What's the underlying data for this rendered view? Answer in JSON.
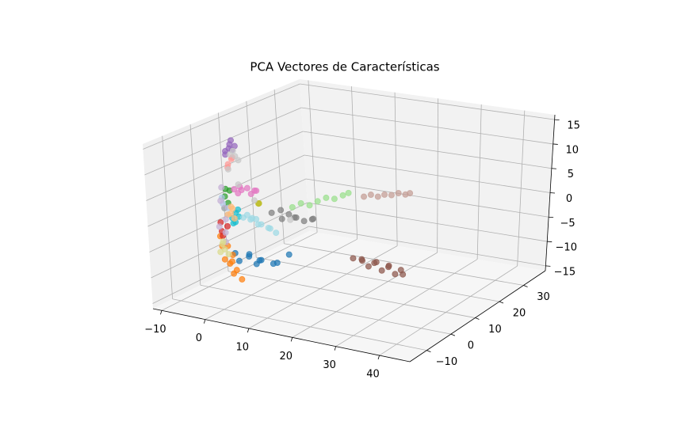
{
  "chart_data": {
    "type": "scatter3d",
    "title": "PCA Vectores de Características",
    "xlim": [
      -12,
      47
    ],
    "ylim": [
      -17,
      39
    ],
    "zlim": [
      -16,
      16
    ],
    "xticks": [
      {
        "value": -10,
        "label": "−10"
      },
      0,
      10,
      20,
      30,
      40
    ],
    "yticks": [
      {
        "value": -10,
        "label": "−10"
      },
      0,
      10,
      20,
      30
    ],
    "zticks": [
      {
        "value": -15,
        "label": "−15"
      },
      {
        "value": -10,
        "label": "−10"
      },
      {
        "value": -5,
        "label": "−5"
      },
      0,
      5,
      10,
      15
    ],
    "grid": true,
    "series": [
      {
        "color": "#1f77b4",
        "x": [
          3,
          4.5,
          5.5,
          6.5,
          7.5,
          8.5,
          9.5,
          11,
          12.5,
          14
        ],
        "y": [
          -10,
          -11,
          -9,
          -10.5,
          -9.5,
          -10,
          -11,
          -9,
          -10,
          -8
        ],
        "z": [
          -4.5,
          -5.5,
          -5,
          -4,
          -6,
          -5,
          -4.5,
          -5.5,
          -4.8,
          -3.5
        ]
      },
      {
        "color": "#ff7f0e",
        "x": [
          1,
          2,
          2.5,
          3,
          3.5,
          4,
          4.5,
          5,
          2,
          3.5
        ],
        "y": [
          -12,
          -11,
          -13,
          -12,
          -11.5,
          -12.5,
          -12,
          -11,
          -13,
          -12
        ],
        "z": [
          -1,
          -3,
          -5,
          -6,
          -8,
          -4,
          -7,
          -9,
          -2.5,
          -5.5
        ]
      },
      {
        "color": "#2ca02c",
        "x": [
          -2,
          -1.5,
          -1,
          -2.5,
          -1.8
        ],
        "y": [
          -5,
          -4,
          -5.5,
          -4.5,
          -5
        ],
        "z": [
          4.5,
          5.5,
          3.5,
          2,
          6
        ]
      },
      {
        "color": "#d62728",
        "x": [
          -3,
          -2.5,
          -2,
          -3.2
        ],
        "y": [
          -5,
          -5.5,
          -4.5,
          -5
        ],
        "z": [
          -2.5,
          -3.2,
          -1.5,
          -0.8
        ]
      },
      {
        "color": "#9467bd",
        "x": [
          -1.5,
          -1,
          -0.5,
          0,
          -1.2,
          -0.3,
          -0.8
        ],
        "y": [
          -5,
          -4.5,
          -5,
          -4,
          -5.5,
          -4.5,
          -4
        ],
        "z": [
          13.5,
          14,
          15,
          14.5,
          13,
          13.8,
          15.5
        ]
      },
      {
        "color": "#8c564b",
        "x": [
          29,
          30.5,
          31.5,
          32.5,
          33.5,
          34.5,
          35.5,
          36.5,
          37.5,
          38.5,
          39.5,
          40.5
        ],
        "y": [
          -9,
          -8,
          -10,
          -9,
          -8.5,
          -9.5,
          -9,
          -8,
          -10,
          -9,
          -8.5,
          -9.5
        ],
        "z": [
          -1.5,
          -2,
          -1,
          -2.5,
          -1.8,
          -1.2,
          -2.8,
          -2,
          -1.5,
          -3,
          -2.2,
          -2.6
        ]
      },
      {
        "color": "#e377c2",
        "x": [
          -3,
          -2,
          -1,
          0,
          1,
          2,
          -1.5,
          0.5
        ],
        "y": [
          0,
          0.5,
          -0.5,
          0,
          1,
          0,
          -1,
          0.5
        ],
        "z": [
          4.5,
          5,
          4.8,
          5.2,
          4.6,
          5,
          4.2,
          4
        ]
      },
      {
        "color": "#7f7f7f",
        "x": [
          -1,
          0.5,
          2,
          3,
          4,
          5,
          6.5,
          8,
          9
        ],
        "y": [
          10,
          11,
          9,
          10,
          10.5,
          9.5,
          10,
          11,
          9
        ],
        "z": [
          -2.5,
          -2,
          -3,
          -2.2,
          -2.8,
          -2.4,
          -3,
          -2.6,
          -2
        ]
      },
      {
        "color": "#bcbd22",
        "x": [
          5.5,
          5
        ],
        "y": [
          -5,
          -4
        ],
        "z": [
          4.3,
          4
        ]
      },
      {
        "color": "#17becf",
        "x": [
          -0.5,
          0,
          0.5,
          1,
          0.2,
          -0.3
        ],
        "y": [
          -5,
          -4.5,
          -5.5,
          -5,
          -4,
          -5
        ],
        "z": [
          0.5,
          1.5,
          0,
          1,
          2,
          -0.5
        ]
      },
      {
        "color": "#aec7e8",
        "x": [
          -2.5,
          -2,
          -1.5,
          -3
        ],
        "y": [
          -5,
          -4,
          -5,
          -4.5
        ],
        "z": [
          3,
          2,
          1,
          4
        ]
      },
      {
        "color": "#ffbb78",
        "x": [
          -1.5,
          -1,
          -0.5,
          0,
          -1
        ],
        "y": [
          -5,
          -4,
          -5.5,
          -5,
          -4.5
        ],
        "z": [
          1,
          2,
          1.5,
          0.5,
          2.5
        ]
      },
      {
        "color": "#98df8a",
        "x": [
          1.5,
          2.3,
          3.1,
          3.8,
          4.6,
          5.4,
          6.2,
          6.7
        ],
        "y": [
          13.7,
          15.6,
          17.5,
          19.4,
          21.3,
          23.1,
          25,
          26.3
        ],
        "z": [
          -2,
          -1.6,
          -2.4,
          -2,
          -1.7,
          -2.3,
          -2,
          -1.8
        ]
      },
      {
        "color": "#ff9896",
        "x": [
          -1,
          -0.5,
          0,
          -0.8
        ],
        "y": [
          -5,
          -4.5,
          -5,
          -5.5
        ],
        "z": [
          11,
          12,
          12.5,
          10.5
        ]
      },
      {
        "color": "#c5b0d5",
        "x": [
          -3,
          -2.5,
          -2,
          -3.2,
          -2.8,
          -2.2,
          -3
        ],
        "y": [
          -5,
          -4.5,
          -5,
          -5.5,
          -4,
          -5,
          -4.5
        ],
        "z": [
          3.5,
          2,
          0,
          -1.5,
          -3,
          -4.5,
          6
        ]
      },
      {
        "color": "#c49c94",
        "x": [
          9.9,
          11,
          12.1,
          13.1,
          14.2,
          15.3,
          16.4,
          17.1
        ],
        "y": [
          27,
          27.9,
          28.8,
          29.7,
          30.6,
          31.5,
          32.4,
          33
        ],
        "z": [
          -2.3,
          -2,
          -2.5,
          -2.2,
          -2.4,
          -2.1,
          -2.5,
          -2.3
        ]
      },
      {
        "color": "#c7c7c7",
        "x": [
          -0.5,
          0,
          0.5,
          1,
          -1,
          0.5,
          1.5,
          2
        ],
        "y": [
          -5,
          -4,
          -5.5,
          -4.5,
          -5,
          -4,
          0,
          12
        ],
        "z": [
          13,
          12.5,
          14,
          12,
          10,
          7,
          3,
          -4
        ]
      },
      {
        "color": "#dbdb8d",
        "x": [
          -3,
          -2.5,
          -2,
          -3.2,
          -2.8
        ],
        "y": [
          -5,
          -5,
          -4.5,
          -5.5,
          -5
        ],
        "z": [
          -5,
          -6,
          -7,
          -6.5,
          -4.5
        ]
      },
      {
        "color": "#9edae5",
        "x": [
          2,
          3,
          4,
          5,
          6,
          7,
          8,
          9,
          3.5,
          5.5
        ],
        "y": [
          -5,
          -4,
          -5,
          -4.5,
          -5,
          -4,
          -5,
          -4.5,
          -6,
          -6
        ],
        "z": [
          1,
          0.5,
          1.2,
          0,
          0.3,
          -0.5,
          -0.2,
          -1,
          2,
          1.5
        ]
      }
    ]
  }
}
